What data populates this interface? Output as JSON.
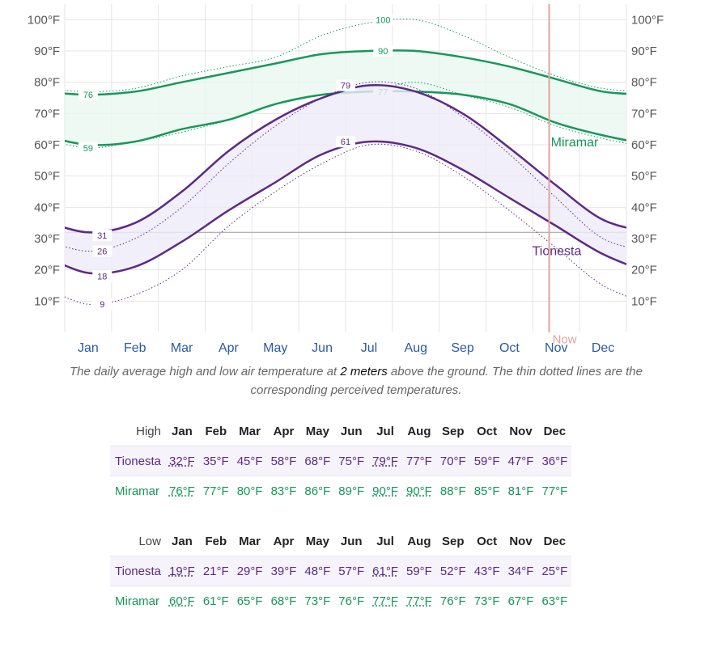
{
  "chart_data": {
    "type": "line",
    "x_axis_months": [
      "Jan",
      "Feb",
      "Mar",
      "Apr",
      "May",
      "Jun",
      "Jul",
      "Aug",
      "Sep",
      "Oct",
      "Nov",
      "Dec"
    ],
    "y_axis_ticks": [
      "10°F",
      "20°F",
      "30°F",
      "40°F",
      "50°F",
      "60°F",
      "70°F",
      "80°F",
      "90°F",
      "100°F"
    ],
    "ylim": [
      0,
      105
    ],
    "freezing_line": 32,
    "now_label": "Now",
    "now_month": 10.35,
    "series": [
      {
        "name": "Miramar",
        "color": "#16985a",
        "high": [
          76,
          77,
          80,
          83,
          86,
          89,
          90,
          90,
          88,
          85,
          81,
          77
        ],
        "low": [
          60,
          61,
          65,
          68,
          73,
          76,
          77,
          77,
          76,
          73,
          67,
          63
        ],
        "perceived_high": [
          77,
          78,
          82,
          85,
          88,
          95,
          99,
          100,
          95,
          88,
          82,
          78
        ],
        "perceived_low": [
          59,
          61,
          64,
          68,
          73,
          76,
          77,
          80,
          76,
          72,
          66,
          62
        ],
        "labels": [
          {
            "x": 1,
            "y": 76,
            "text": "76"
          },
          {
            "x": 1,
            "y": 59,
            "text": "59"
          },
          {
            "x": 7.3,
            "y": 100,
            "text": "100"
          },
          {
            "x": 7.3,
            "y": 90,
            "text": "90"
          },
          {
            "x": 7.3,
            "y": 77,
            "text": "77"
          }
        ]
      },
      {
        "name": "Tionesta",
        "color": "#5b2a86",
        "high": [
          32,
          35,
          45,
          58,
          68,
          75,
          79,
          77,
          70,
          59,
          47,
          36
        ],
        "low": [
          19,
          21,
          29,
          39,
          48,
          57,
          61,
          59,
          52,
          43,
          34,
          25
        ],
        "perceived_high": [
          26,
          30,
          40,
          54,
          66,
          75,
          80,
          78,
          69,
          57,
          43,
          30
        ],
        "perceived_low": [
          9,
          12,
          20,
          34,
          45,
          54,
          60,
          58,
          50,
          39,
          27,
          15
        ],
        "labels": [
          {
            "x": 1.3,
            "y": 31,
            "text": "31"
          },
          {
            "x": 1.3,
            "y": 26,
            "text": "26"
          },
          {
            "x": 1.3,
            "y": 18,
            "text": "18"
          },
          {
            "x": 1.3,
            "y": 9,
            "text": "9"
          },
          {
            "x": 6.5,
            "y": 79,
            "text": "79"
          },
          {
            "x": 6.5,
            "y": 61,
            "text": "61"
          }
        ]
      }
    ]
  },
  "caption": {
    "pre": "The daily average high and low air temperature at ",
    "highlight": "2 meters",
    "post": " above the ground. The thin dotted lines are the corresponding perceived temperatures."
  },
  "tables": [
    {
      "label": "High",
      "months": [
        "Jan",
        "Feb",
        "Mar",
        "Apr",
        "May",
        "Jun",
        "Jul",
        "Aug",
        "Sep",
        "Oct",
        "Nov",
        "Dec"
      ],
      "rows": [
        {
          "name": "Tionesta",
          "values": [
            "32°F",
            "35°F",
            "45°F",
            "58°F",
            "68°F",
            "75°F",
            "79°F",
            "77°F",
            "70°F",
            "59°F",
            "47°F",
            "36°F"
          ]
        },
        {
          "name": "Miramar",
          "values": [
            "76°F",
            "77°F",
            "80°F",
            "83°F",
            "86°F",
            "89°F",
            "90°F",
            "90°F",
            "88°F",
            "85°F",
            "81°F",
            "77°F"
          ]
        }
      ]
    },
    {
      "label": "Low",
      "months": [
        "Jan",
        "Feb",
        "Mar",
        "Apr",
        "May",
        "Jun",
        "Jul",
        "Aug",
        "Sep",
        "Oct",
        "Nov",
        "Dec"
      ],
      "rows": [
        {
          "name": "Tionesta",
          "values": [
            "19°F",
            "21°F",
            "29°F",
            "39°F",
            "48°F",
            "57°F",
            "61°F",
            "59°F",
            "52°F",
            "43°F",
            "34°F",
            "25°F"
          ]
        },
        {
          "name": "Miramar",
          "values": [
            "60°F",
            "61°F",
            "65°F",
            "68°F",
            "73°F",
            "76°F",
            "77°F",
            "77°F",
            "76°F",
            "73°F",
            "67°F",
            "63°F"
          ]
        }
      ]
    }
  ]
}
